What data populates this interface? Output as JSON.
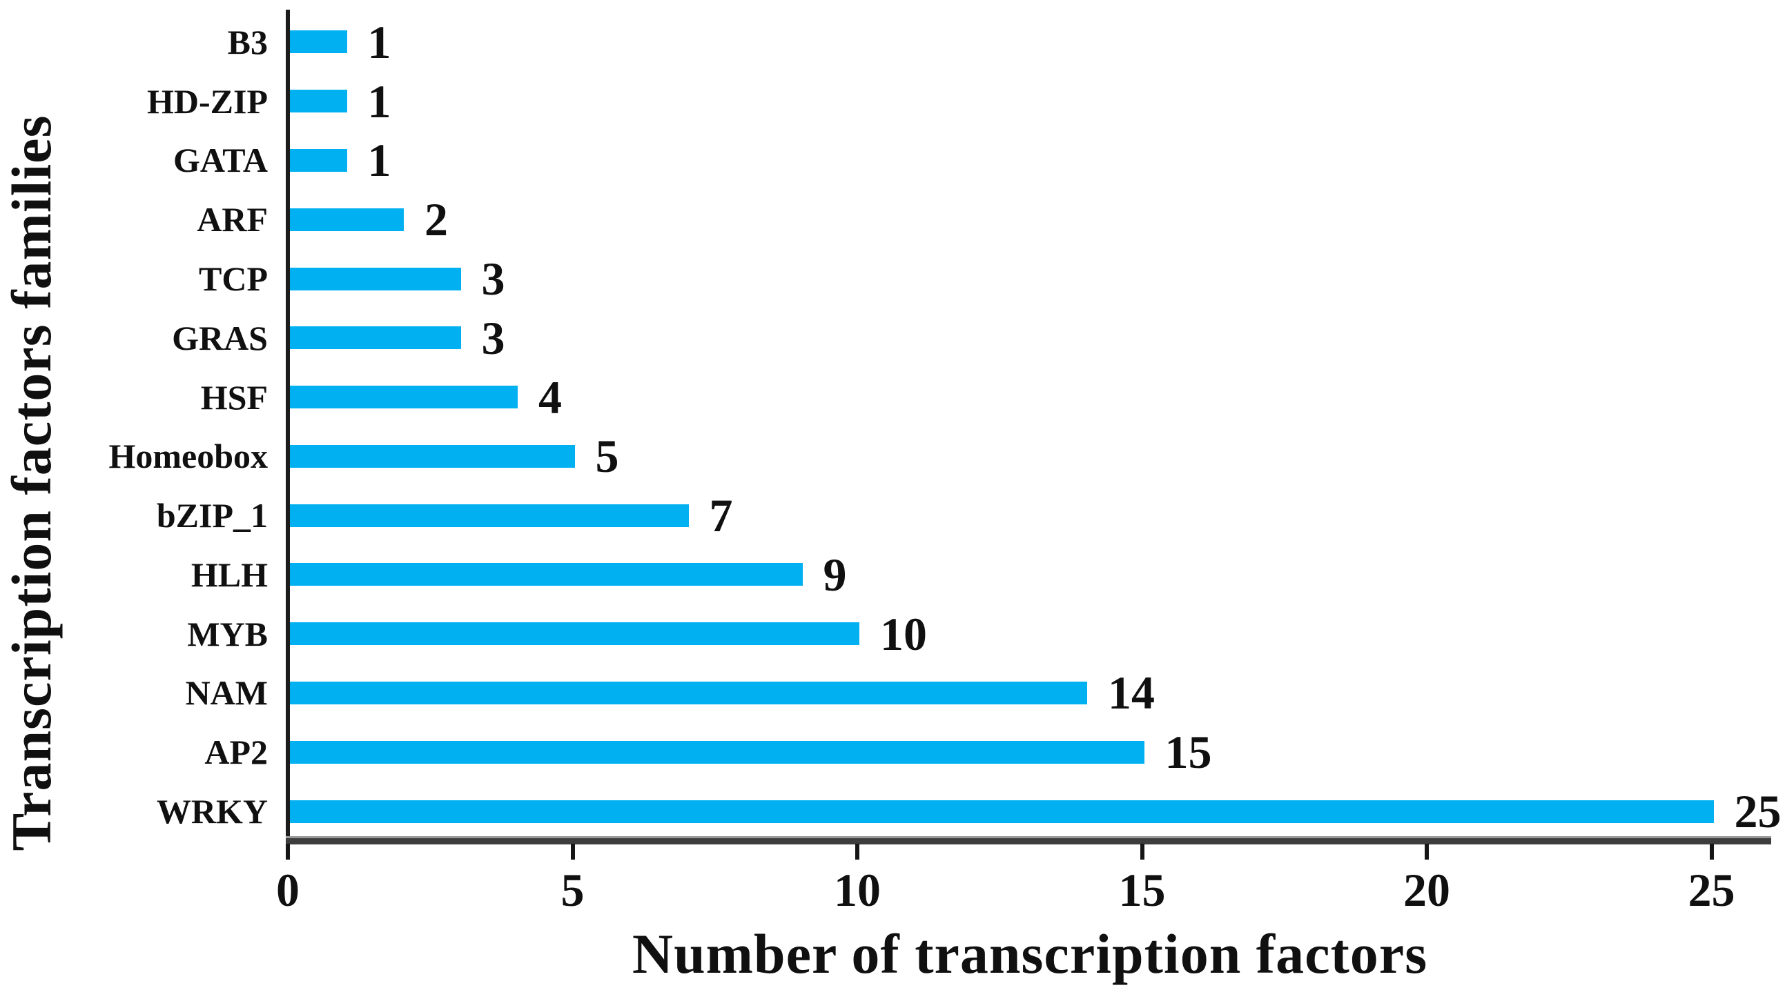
{
  "chart_data": {
    "type": "bar",
    "orientation": "horizontal",
    "title": "",
    "xlabel": "Number of transcription factors",
    "ylabel": "Transcription factors families",
    "categories": [
      "B3",
      "HD-ZIP",
      "GATA",
      "ARF",
      "TCP",
      "GRAS",
      "HSF",
      "Homeobox",
      "bZIP_1",
      "HLH",
      "MYB",
      "NAM",
      "AP2",
      "WRKY"
    ],
    "values": [
      1,
      1,
      1,
      2,
      3,
      3,
      4,
      5,
      7,
      9,
      10,
      14,
      15,
      25
    ],
    "value_labels": [
      "1",
      "1",
      "1",
      "2",
      "3",
      "3",
      "4",
      "5",
      "7",
      "9",
      "10",
      "14",
      "15",
      "25"
    ],
    "xlim": [
      0,
      25
    ],
    "x_ticks": [
      0,
      5,
      10,
      15,
      20,
      25
    ],
    "x_tick_labels": [
      "0",
      "5",
      "10",
      "15",
      "20",
      "25"
    ],
    "grid": false,
    "legend_position": "none",
    "bar_color": "#00B0F0",
    "axis_line_color": "#3d3d3d",
    "text_color": "#101010"
  }
}
